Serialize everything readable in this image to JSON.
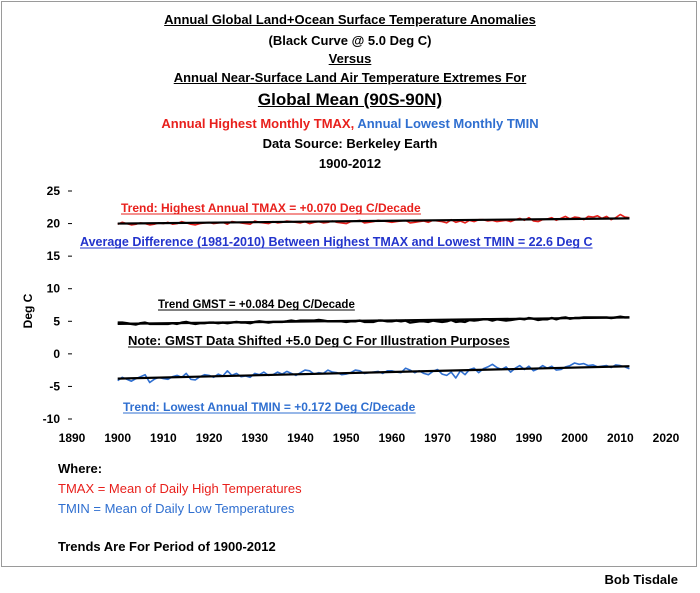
{
  "titles": {
    "line1": "Annual Global Land+Ocean Surface Temperature Anomalies",
    "line2": "(Black Curve @ 5.0 Deg C)",
    "line3": "Versus",
    "line4": "Annual Near-Surface Land Air Temperature Extremes For",
    "line5": "Global Mean (90S-90N)",
    "line6_red": "Annual Highest Monthly TMAX,",
    "line6_blue": "Annual Lowest Monthly TMIN",
    "line7": "Data Source: Berkeley Earth",
    "line8": "1900-2012"
  },
  "annotations": {
    "tmax_trend": "Trend: Highest Annual TMAX = +0.070 Deg C/Decade",
    "avg_diff": "Average Difference (1981-2010) Between Highest TMAX and Lowest TMIN = 22.6 Deg C",
    "gmst_trend": "Trend GMST = +0.084 Deg C/Decade",
    "gmst_note": "Note: GMST Data Shifted +5.0 Deg C For Illustration Purposes",
    "tmin_trend": "Trend: Lowest Annual TMIN = +0.172 Deg C/Decade"
  },
  "legend": {
    "where": "Where:",
    "tmax_def": "TMAX = Mean of Daily High Temperatures",
    "tmin_def": "TMIN = Mean of Daily Low Temperatures",
    "period": "Trends Are For Period of 1900-2012"
  },
  "credit": "Bob Tisdale",
  "colors": {
    "tmax": "#e8201c",
    "tmin": "#2f6fd0",
    "gmst": "#000000"
  },
  "chart_data": {
    "type": "line",
    "title": "Global Mean (90S-90N)",
    "xlabel": "",
    "ylabel": "Deg C",
    "xlim": [
      1890,
      2020
    ],
    "ylim": [
      -10,
      25
    ],
    "xticks": [
      1890,
      1900,
      1910,
      1920,
      1930,
      1940,
      1950,
      1960,
      1970,
      1980,
      1990,
      2000,
      2010,
      2020
    ],
    "yticks": [
      -10,
      -5,
      0,
      5,
      10,
      15,
      20,
      25
    ],
    "grid": false,
    "series": [
      {
        "name": "Annual Highest Monthly TMAX",
        "color": "#e8201c",
        "start_year": 1900,
        "values": [
          19.9,
          20.2,
          20.0,
          19.8,
          19.9,
          20.1,
          20.0,
          19.8,
          19.9,
          20.1,
          20.0,
          20.2,
          19.9,
          20.0,
          20.3,
          20.1,
          19.9,
          19.8,
          20.0,
          20.1,
          20.2,
          20.0,
          20.1,
          20.2,
          19.9,
          20.3,
          20.2,
          20.1,
          20.0,
          19.9,
          20.4,
          20.2,
          20.1,
          20.0,
          20.3,
          20.1,
          20.2,
          20.4,
          20.3,
          20.2,
          20.1,
          20.3,
          20.0,
          20.2,
          20.3,
          20.1,
          20.2,
          20.4,
          20.2,
          20.1,
          20.0,
          20.3,
          20.4,
          20.5,
          20.1,
          20.2,
          20.3,
          20.5,
          20.4,
          20.3,
          20.2,
          20.3,
          20.4,
          20.5,
          20.1,
          20.2,
          20.3,
          20.4,
          20.2,
          20.5,
          20.4,
          20.3,
          20.1,
          20.6,
          20.2,
          20.4,
          20.1,
          20.5,
          20.3,
          20.6,
          20.6,
          20.4,
          20.5,
          20.3,
          20.4,
          20.5,
          20.3,
          20.6,
          20.8,
          20.5,
          20.9,
          20.4,
          20.3,
          20.6,
          20.7,
          20.9,
          20.5,
          20.8,
          21.1,
          20.7,
          21.0,
          20.9,
          20.6,
          21.1,
          21.0,
          21.2,
          20.8,
          21.1,
          20.6,
          20.9,
          21.4,
          21.0,
          20.9
        ],
        "trend": [
          20.0,
          20.8
        ]
      },
      {
        "name": "GMST (+5.0 Deg C)",
        "color": "#000000",
        "start_year": 1900,
        "values": [
          4.8,
          4.8,
          4.7,
          4.6,
          4.5,
          4.7,
          4.8,
          4.6,
          4.6,
          4.6,
          4.6,
          4.6,
          4.7,
          4.6,
          4.8,
          4.9,
          4.7,
          4.6,
          4.7,
          4.7,
          4.8,
          4.8,
          4.7,
          4.8,
          4.7,
          4.8,
          4.9,
          4.8,
          4.8,
          4.7,
          4.9,
          5.0,
          4.9,
          4.8,
          4.9,
          4.9,
          4.9,
          5.0,
          5.1,
          5.0,
          5.1,
          5.1,
          5.1,
          5.1,
          5.2,
          5.1,
          5.0,
          5.0,
          5.0,
          5.0,
          4.9,
          5.0,
          5.0,
          5.1,
          4.9,
          4.9,
          4.9,
          5.1,
          5.1,
          5.0,
          5.0,
          5.1,
          5.0,
          5.1,
          4.8,
          4.9,
          5.0,
          5.0,
          4.9,
          5.1,
          5.0,
          4.9,
          5.0,
          5.2,
          4.9,
          5.0,
          4.9,
          5.2,
          5.1,
          5.2,
          5.3,
          5.3,
          5.1,
          5.3,
          5.2,
          5.1,
          5.2,
          5.3,
          5.4,
          5.3,
          5.5,
          5.4,
          5.2,
          5.3,
          5.3,
          5.5,
          5.3,
          5.5,
          5.6,
          5.4,
          5.5,
          5.5,
          5.6,
          5.6,
          5.6,
          5.6,
          5.6,
          5.6,
          5.5,
          5.6,
          5.7,
          5.6,
          5.6
        ],
        "trend": [
          4.6,
          5.6
        ]
      },
      {
        "name": "Annual Lowest Monthly TMIN",
        "color": "#2f6fd0",
        "start_year": 1900,
        "values": [
          -4.1,
          -3.6,
          -3.9,
          -4.2,
          -3.8,
          -3.5,
          -3.2,
          -4.4,
          -3.9,
          -3.6,
          -3.8,
          -3.9,
          -3.5,
          -3.3,
          -3.6,
          -3.0,
          -3.9,
          -4.0,
          -3.5,
          -3.2,
          -3.3,
          -3.6,
          -3.1,
          -3.4,
          -2.6,
          -3.3,
          -3.0,
          -3.5,
          -3.4,
          -3.6,
          -3.0,
          -3.2,
          -2.8,
          -3.3,
          -3.2,
          -2.8,
          -3.1,
          -2.7,
          -3.0,
          -3.3,
          -2.9,
          -2.5,
          -2.6,
          -3.1,
          -2.9,
          -3.0,
          -2.5,
          -2.8,
          -2.9,
          -3.2,
          -3.1,
          -2.9,
          -2.5,
          -2.6,
          -3.0,
          -2.9,
          -2.8,
          -2.7,
          -3.0,
          -2.6,
          -2.6,
          -2.8,
          -2.9,
          -2.2,
          -2.5,
          -2.9,
          -2.6,
          -3.0,
          -3.2,
          -2.7,
          -2.4,
          -3.1,
          -3.3,
          -2.8,
          -3.7,
          -2.6,
          -3.2,
          -2.4,
          -2.2,
          -2.9,
          -2.3,
          -2.0,
          -1.6,
          -2.1,
          -2.4,
          -2.0,
          -2.8,
          -2.2,
          -1.8,
          -2.4,
          -1.9,
          -2.6,
          -2.3,
          -1.8,
          -2.2,
          -1.9,
          -2.5,
          -2.4,
          -2.0,
          -1.8,
          -1.4,
          -1.6,
          -1.5,
          -1.8,
          -1.7,
          -2.0,
          -1.9,
          -1.8,
          -2.1,
          -1.7,
          -1.8,
          -2.0,
          -2.3
        ],
        "trend": [
          -3.8,
          -1.9
        ]
      }
    ]
  }
}
